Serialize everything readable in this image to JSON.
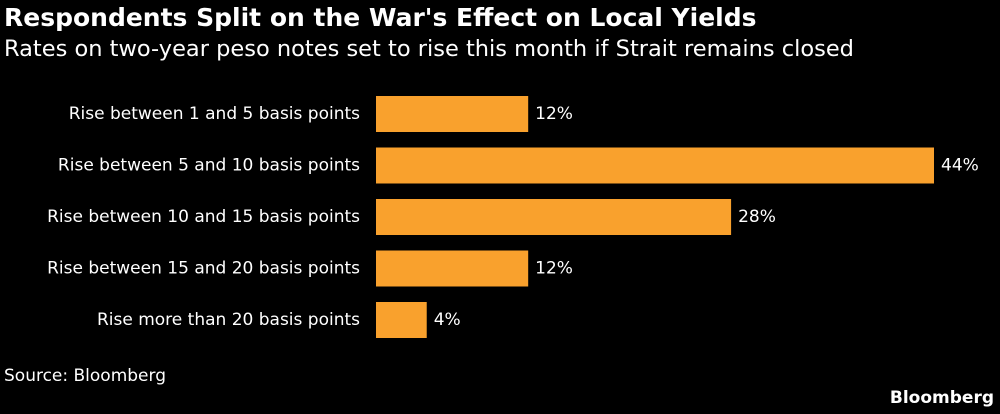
{
  "header": {
    "title": "Respondents Split on the War's Effect on Local Yields",
    "subtitle": "Rates on two-year peso notes set to rise this month if Strait remains closed"
  },
  "footer": {
    "source": "Source: Bloomberg",
    "brand": "Bloomberg"
  },
  "colors": {
    "background": "#000000",
    "bar": "#f9a12d",
    "text": "#ffffff"
  },
  "chart_data": {
    "type": "bar",
    "orientation": "horizontal",
    "title": "Respondents Split on the War's Effect on Local Yields",
    "subtitle": "Rates on two-year peso notes set to rise this month if Strait remains closed",
    "categories": [
      "Rise between 1 and 5 basis points",
      "Rise between 5 and 10 basis points",
      "Rise between 10 and 15 basis points",
      "Rise between 15 and 20 basis points",
      "Rise more than 20 basis points"
    ],
    "values": [
      12,
      44,
      28,
      12,
      4
    ],
    "value_labels": [
      "12%",
      "44%",
      "28%",
      "12%",
      "4%"
    ],
    "unit": "%",
    "xlim": [
      0,
      44
    ],
    "grid": false,
    "legend": "none",
    "source": "Source: Bloomberg"
  }
}
